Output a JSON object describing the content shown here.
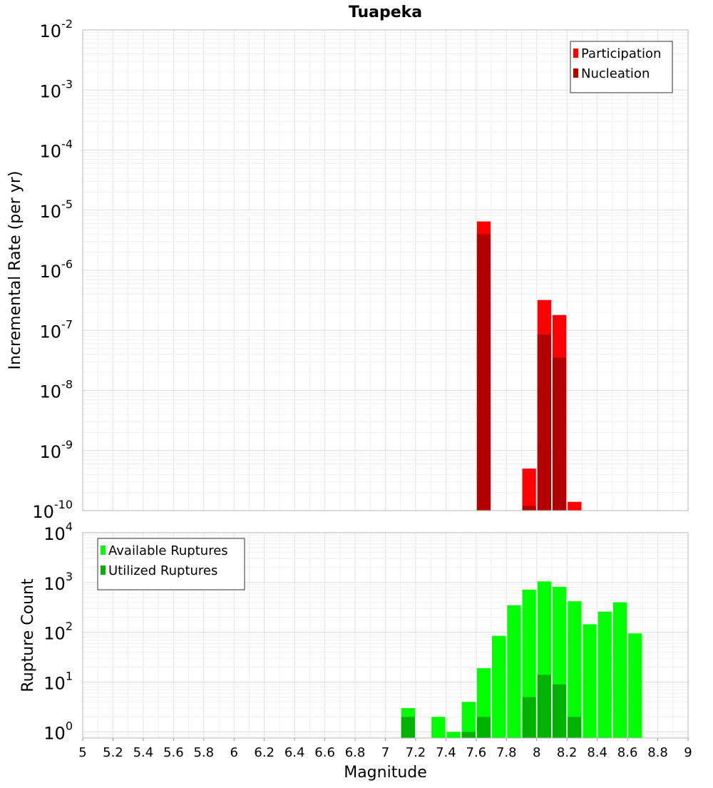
{
  "chart_data": [
    {
      "type": "bar",
      "title": "Tuapeka",
      "ylabel": "Incremental Rate (per yr)",
      "xlabel": "",
      "xlim": [
        5,
        9
      ],
      "ylim": [
        1e-10,
        0.01
      ],
      "yscale": "log",
      "bar_width": 0.1,
      "grid": true,
      "legend_position": "top-right",
      "y_ticks": [
        {
          "base": "10",
          "exp": "-10"
        },
        {
          "base": "10",
          "exp": "-9"
        },
        {
          "base": "10",
          "exp": "-8"
        },
        {
          "base": "10",
          "exp": "-7"
        },
        {
          "base": "10",
          "exp": "-6"
        },
        {
          "base": "10",
          "exp": "-5"
        },
        {
          "base": "10",
          "exp": "-4"
        },
        {
          "base": "10",
          "exp": "-3"
        },
        {
          "base": "10",
          "exp": "-2"
        }
      ],
      "series": [
        {
          "name": "Participation",
          "color": "#ff0000",
          "x": [
            7.65,
            7.95,
            8.05,
            8.15,
            8.25
          ],
          "values": [
            6.5e-06,
            5e-10,
            3.2e-07,
            1.8e-07,
            1.4e-10
          ]
        },
        {
          "name": "Nucleation",
          "color": "#b20000",
          "x": [
            7.65,
            7.95,
            8.05,
            8.15
          ],
          "values": [
            4e-06,
            1.2e-10,
            8.5e-08,
            3.5e-08
          ]
        }
      ]
    },
    {
      "type": "bar",
      "title": "",
      "ylabel": "Rupture Count",
      "xlabel": "Magnitude",
      "xlim": [
        5,
        9
      ],
      "ylim": [
        0.75,
        10000
      ],
      "yscale": "log",
      "bar_width": 0.1,
      "grid": true,
      "legend_position": "top-left",
      "x_ticks": [
        "5",
        "5.2",
        "5.4",
        "5.6",
        "5.8",
        "6",
        "6.2",
        "6.4",
        "6.6",
        "6.8",
        "7",
        "7.2",
        "7.4",
        "7.6",
        "7.8",
        "8",
        "8.2",
        "8.4",
        "8.6",
        "8.8",
        "9"
      ],
      "y_ticks": [
        {
          "base": "10",
          "exp": "0"
        },
        {
          "base": "10",
          "exp": "1"
        },
        {
          "base": "10",
          "exp": "2"
        },
        {
          "base": "10",
          "exp": "3"
        },
        {
          "base": "10",
          "exp": "4"
        }
      ],
      "series": [
        {
          "name": "Available Ruptures",
          "color": "#00ff00",
          "x": [
            7.15,
            7.35,
            7.45,
            7.55,
            7.65,
            7.75,
            7.85,
            7.95,
            8.05,
            8.15,
            8.25,
            8.35,
            8.45,
            8.55,
            8.65
          ],
          "values": [
            3,
            2,
            1,
            4,
            19,
            85,
            350,
            720,
            1050,
            820,
            420,
            145,
            260,
            400,
            95
          ]
        },
        {
          "name": "Utilized Ruptures",
          "color": "#00b200",
          "x": [
            7.15,
            7.55,
            7.65,
            7.95,
            8.05,
            8.15,
            8.25
          ],
          "values": [
            2,
            1,
            2,
            5,
            14,
            9,
            2
          ]
        }
      ]
    }
  ]
}
